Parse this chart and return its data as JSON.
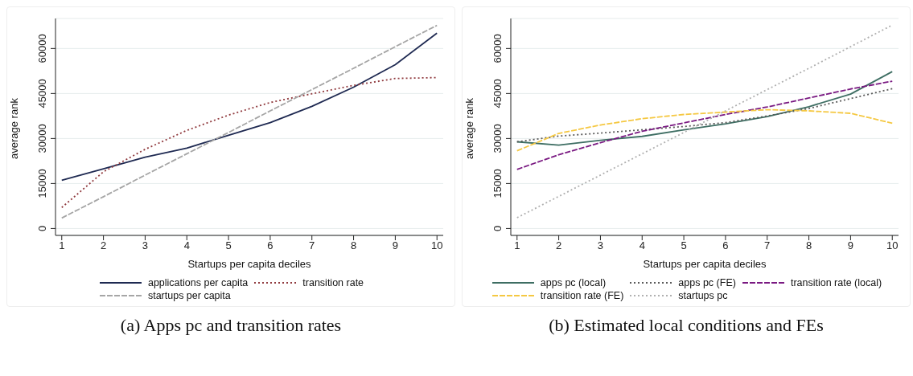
{
  "chart_data": [
    {
      "type": "line",
      "title": "(a) Apps pc and transition rates",
      "xlabel": "Startups per capita deciles",
      "ylabel": "average rank",
      "x": [
        1,
        2,
        3,
        4,
        5,
        6,
        7,
        8,
        9,
        10
      ],
      "xlim": [
        0.85,
        10.15
      ],
      "xticks": [
        1,
        2,
        3,
        4,
        5,
        6,
        7,
        8,
        9,
        10
      ],
      "ylim": [
        -2300,
        70000
      ],
      "yticks": [
        0,
        15000,
        30000,
        45000,
        60000
      ],
      "grid": "y",
      "legend": "bottom",
      "marker": "none",
      "series": [
        {
          "name": "applications per capita",
          "color": "#1f2a52",
          "line_style": "solid",
          "values": [
            16100,
            19900,
            23800,
            26800,
            31100,
            35300,
            40700,
            47100,
            54600,
            65100
          ]
        },
        {
          "name": "transition rate",
          "color": "#903a3e",
          "line_style": "dotted",
          "values": [
            7000,
            18900,
            26400,
            32700,
            37800,
            42000,
            44900,
            47700,
            50000,
            50300
          ]
        },
        {
          "name": "startups per capita",
          "color": "#a6a6a6",
          "line_style": "dashed",
          "values": [
            3500,
            10600,
            17800,
            24900,
            32000,
            39200,
            46300,
            53400,
            60600,
            67700
          ]
        }
      ]
    },
    {
      "type": "line",
      "title": "(b) Estimated local conditions and FEs",
      "xlabel": "Startups per capita deciles",
      "ylabel": "average rank",
      "x": [
        1,
        2,
        3,
        4,
        5,
        6,
        7,
        8,
        9,
        10
      ],
      "xlim": [
        0.85,
        10.15
      ],
      "xticks": [
        1,
        2,
        3,
        4,
        5,
        6,
        7,
        8,
        9,
        10
      ],
      "ylim": [
        -2300,
        70000
      ],
      "yticks": [
        0,
        15000,
        30000,
        45000,
        60000
      ],
      "grid": "y",
      "legend": "bottom",
      "marker": "none",
      "series": [
        {
          "name": "apps pc (local)",
          "color": "#3e6e63",
          "line_style": "solid",
          "values": [
            28900,
            27800,
            29400,
            30700,
            32900,
            34900,
            37300,
            40600,
            44800,
            52300
          ]
        },
        {
          "name": "apps pc (FE)",
          "color": "#5a5a5a",
          "line_style": "dotted",
          "values": [
            28900,
            30800,
            31800,
            32900,
            34000,
            35300,
            37500,
            40000,
            43300,
            46600
          ]
        },
        {
          "name": "transition rate (local)",
          "color": "#7a1a82",
          "line_style": "dashed",
          "values": [
            19700,
            24600,
            28600,
            32400,
            35200,
            38000,
            40500,
            43500,
            46500,
            49100
          ]
        },
        {
          "name": "transition rate (FE)",
          "color": "#f5c842",
          "line_style": "dashed",
          "values": [
            25900,
            31700,
            34500,
            36600,
            38000,
            38800,
            39600,
            39200,
            38400,
            35100
          ]
        },
        {
          "name": "startups pc",
          "color": "#b0b0b0",
          "line_style": "dotted",
          "values": [
            3600,
            10700,
            17800,
            24900,
            32000,
            39200,
            46300,
            53400,
            60600,
            67800
          ]
        }
      ]
    }
  ]
}
